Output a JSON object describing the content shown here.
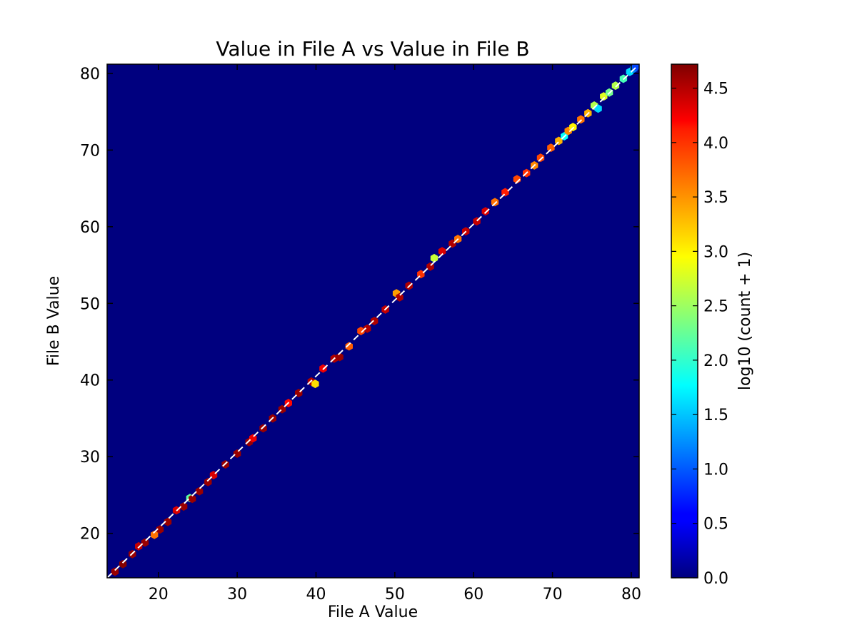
{
  "chart_data": {
    "type": "heatmap",
    "subtype": "hexbin",
    "title": "Value in File A vs Value in File B",
    "xlabel": "File A Value",
    "ylabel": "File B Value",
    "xlim": [
      13.5,
      81.0
    ],
    "ylim": [
      14.2,
      81.2
    ],
    "xticks": [
      20,
      30,
      40,
      50,
      60,
      70,
      80
    ],
    "yticks": [
      20,
      30,
      40,
      50,
      60,
      70,
      80
    ],
    "colormap": "jet",
    "background_value": 0.0,
    "colorbar": {
      "label": "log10 (count + 1)",
      "range": [
        0.0,
        4.72
      ],
      "ticks": [
        0.0,
        0.5,
        1.0,
        1.5,
        2.0,
        2.5,
        3.0,
        3.5,
        4.0,
        4.5
      ],
      "tick_labels": [
        "0.0",
        "0.5",
        "1.0",
        "1.5",
        "2.0",
        "2.5",
        "3.0",
        "3.5",
        "4.0",
        "4.5"
      ]
    },
    "reference_line": {
      "style": "dashed",
      "color": "#ffffff",
      "from": [
        13.5,
        14.2
      ],
      "to": [
        81.0,
        81.2
      ]
    },
    "points": [
      {
        "x": 14.5,
        "y": 15.0,
        "v": 4.6
      },
      {
        "x": 15.5,
        "y": 16.0,
        "v": 4.7
      },
      {
        "x": 16.7,
        "y": 17.3,
        "v": 4.6
      },
      {
        "x": 17.5,
        "y": 18.3,
        "v": 4.4
      },
      {
        "x": 18.3,
        "y": 18.8,
        "v": 4.6
      },
      {
        "x": 19.5,
        "y": 19.8,
        "v": 3.6
      },
      {
        "x": 20.2,
        "y": 20.5,
        "v": 4.6
      },
      {
        "x": 21.2,
        "y": 21.5,
        "v": 4.6
      },
      {
        "x": 22.3,
        "y": 23.0,
        "v": 4.3
      },
      {
        "x": 23.2,
        "y": 23.5,
        "v": 4.6
      },
      {
        "x": 24.0,
        "y": 24.6,
        "v": 2.2
      },
      {
        "x": 24.3,
        "y": 24.5,
        "v": 4.6
      },
      {
        "x": 25.2,
        "y": 25.5,
        "v": 4.6
      },
      {
        "x": 26.3,
        "y": 26.7,
        "v": 4.6
      },
      {
        "x": 27.0,
        "y": 27.6,
        "v": 4.3
      },
      {
        "x": 28.5,
        "y": 29.0,
        "v": 4.6
      },
      {
        "x": 30.0,
        "y": 30.4,
        "v": 4.6
      },
      {
        "x": 31.5,
        "y": 31.9,
        "v": 4.6
      },
      {
        "x": 32.0,
        "y": 32.4,
        "v": 4.2
      },
      {
        "x": 33.3,
        "y": 33.7,
        "v": 4.6
      },
      {
        "x": 34.5,
        "y": 35.0,
        "v": 4.6
      },
      {
        "x": 35.7,
        "y": 36.2,
        "v": 4.6
      },
      {
        "x": 36.5,
        "y": 37.0,
        "v": 4.1
      },
      {
        "x": 37.8,
        "y": 38.3,
        "v": 4.6
      },
      {
        "x": 39.4,
        "y": 39.8,
        "v": 4.5
      },
      {
        "x": 39.9,
        "y": 39.5,
        "v": 3.1
      },
      {
        "x": 40.9,
        "y": 41.5,
        "v": 4.2
      },
      {
        "x": 42.3,
        "y": 42.8,
        "v": 4.5
      },
      {
        "x": 43.0,
        "y": 43.0,
        "v": 4.6
      },
      {
        "x": 44.2,
        "y": 44.4,
        "v": 3.7
      },
      {
        "x": 45.7,
        "y": 46.4,
        "v": 3.8
      },
      {
        "x": 46.5,
        "y": 46.7,
        "v": 4.5
      },
      {
        "x": 47.4,
        "y": 47.7,
        "v": 4.5
      },
      {
        "x": 48.8,
        "y": 49.2,
        "v": 4.4
      },
      {
        "x": 50.2,
        "y": 51.3,
        "v": 3.4
      },
      {
        "x": 50.6,
        "y": 50.8,
        "v": 4.5
      },
      {
        "x": 51.8,
        "y": 52.3,
        "v": 4.5
      },
      {
        "x": 53.3,
        "y": 53.8,
        "v": 3.9
      },
      {
        "x": 54.5,
        "y": 54.8,
        "v": 4.5
      },
      {
        "x": 55.0,
        "y": 55.9,
        "v": 2.7
      },
      {
        "x": 56.0,
        "y": 56.8,
        "v": 4.3
      },
      {
        "x": 57.3,
        "y": 57.8,
        "v": 4.5
      },
      {
        "x": 58.0,
        "y": 58.4,
        "v": 3.6
      },
      {
        "x": 59.0,
        "y": 59.4,
        "v": 4.4
      },
      {
        "x": 60.4,
        "y": 60.7,
        "v": 4.4
      },
      {
        "x": 61.5,
        "y": 62.0,
        "v": 4.3
      },
      {
        "x": 62.7,
        "y": 63.2,
        "v": 3.6
      },
      {
        "x": 64.0,
        "y": 64.5,
        "v": 4.0
      },
      {
        "x": 65.5,
        "y": 66.2,
        "v": 3.8
      },
      {
        "x": 66.7,
        "y": 67.0,
        "v": 3.9
      },
      {
        "x": 67.7,
        "y": 68.0,
        "v": 3.5
      },
      {
        "x": 68.5,
        "y": 69.0,
        "v": 3.8
      },
      {
        "x": 69.8,
        "y": 70.3,
        "v": 3.7
      },
      {
        "x": 70.8,
        "y": 71.2,
        "v": 3.3
      },
      {
        "x": 71.5,
        "y": 71.8,
        "v": 1.8
      },
      {
        "x": 72.0,
        "y": 72.5,
        "v": 3.5
      },
      {
        "x": 72.6,
        "y": 73.0,
        "v": 3.0
      },
      {
        "x": 73.6,
        "y": 74.0,
        "v": 3.6
      },
      {
        "x": 74.5,
        "y": 74.8,
        "v": 3.3
      },
      {
        "x": 75.3,
        "y": 75.8,
        "v": 2.6
      },
      {
        "x": 75.8,
        "y": 75.4,
        "v": 1.6
      },
      {
        "x": 76.5,
        "y": 77.0,
        "v": 2.8
      },
      {
        "x": 77.2,
        "y": 77.5,
        "v": 2.3
      },
      {
        "x": 78.0,
        "y": 78.4,
        "v": 2.6
      },
      {
        "x": 79.0,
        "y": 79.3,
        "v": 2.1
      },
      {
        "x": 79.8,
        "y": 80.2,
        "v": 1.6
      },
      {
        "x": 80.3,
        "y": 80.6,
        "v": 1.2
      },
      {
        "x": 80.6,
        "y": 80.9,
        "v": 0.9
      }
    ]
  }
}
